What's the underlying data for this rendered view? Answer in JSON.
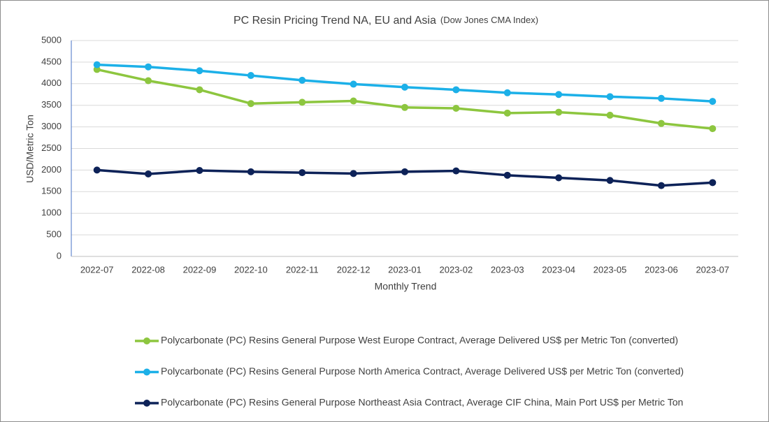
{
  "chart_data": {
    "type": "line",
    "title": "PC Resin Pricing Trend NA, EU and Asia",
    "subtitle": "(Dow Jones CMA Index)",
    "x_label": "Monthly Trend",
    "y_label": "USD/Metric Ton",
    "categories": [
      "2022-07",
      "2022-08",
      "2022-09",
      "2022-10",
      "2022-11",
      "2022-12",
      "2023-01",
      "2023-02",
      "2023-03",
      "2023-04",
      "2023-05",
      "2023-06",
      "2023-07"
    ],
    "series": [
      {
        "name": "Polycarbonate (PC) Resins General Purpose West Europe Contract, Average Delivered US$ per Metric Ton (converted)",
        "color": "#8dc63f",
        "values": [
          4330,
          4070,
          3860,
          3540,
          3570,
          3600,
          3450,
          3430,
          3320,
          3340,
          3270,
          3080,
          2960
        ]
      },
      {
        "name": "Polycarbonate (PC) Resins General Purpose North America Contract, Average Delivered US$ per Metric Ton (converted)",
        "color": "#1cb0e8",
        "values": [
          4440,
          4390,
          4300,
          4190,
          4080,
          3990,
          3920,
          3860,
          3790,
          3750,
          3700,
          3660,
          3590
        ]
      },
      {
        "name": "Polycarbonate (PC) Resins General Purpose Northeast Asia Contract, Average CIF China, Main Port US$ per Metric Ton",
        "color": "#0d2258",
        "values": [
          2000,
          1910,
          1990,
          1960,
          1940,
          1920,
          1960,
          1980,
          1880,
          1820,
          1760,
          1640,
          1710
        ]
      }
    ],
    "ylim": [
      0,
      5000
    ],
    "yticks": [
      0,
      500,
      1000,
      1500,
      2000,
      2500,
      3000,
      3500,
      4000,
      4500,
      5000
    ],
    "grid": true,
    "legend": "bottom"
  }
}
